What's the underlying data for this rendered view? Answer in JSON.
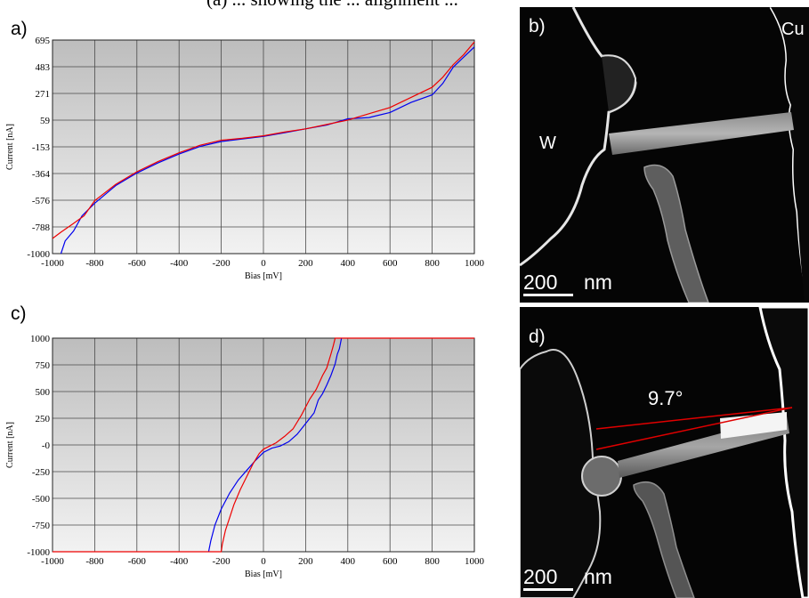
{
  "caption_fragment": "(a) ... showing the ... alignment ...",
  "panels": {
    "a": "a)",
    "b": "b)",
    "c": "c)",
    "d": "d)"
  },
  "tem_b": {
    "left_label": "W",
    "right_label": "Cu",
    "scale_value": "200",
    "scale_unit": "nm"
  },
  "tem_d": {
    "angle_label": "9.7°",
    "scale_value": "200",
    "scale_unit": "nm"
  },
  "colors": {
    "series_1": "#0000ee",
    "series_2": "#ee0000",
    "plot_bg_top": "#bdbdbd",
    "plot_bg_bottom": "#f2f2f2"
  },
  "chart_data": [
    {
      "type": "line",
      "xlabel": "Bias [mV]",
      "ylabel": "Current [nA]",
      "xlim": [
        -1000,
        1000
      ],
      "ylim": [
        -1000,
        695
      ],
      "xticks": [
        "-1000",
        "-800",
        "-600",
        "-400",
        "-200",
        "0",
        "200",
        "400",
        "600",
        "800",
        "1000"
      ],
      "yticks": [
        "695",
        "483",
        "271",
        "59",
        "-153",
        "-364",
        "-576",
        "-788",
        "-1000"
      ],
      "series": [
        {
          "color": "blue",
          "x": [
            -960,
            -940,
            -900,
            -860,
            -800,
            -700,
            -600,
            -500,
            -400,
            -300,
            -200,
            -100,
            0,
            100,
            200,
            300,
            400,
            500,
            600,
            700,
            800,
            850,
            900,
            950,
            1000
          ],
          "y": [
            -1000,
            -900,
            -820,
            -700,
            -600,
            -460,
            -360,
            -280,
            -210,
            -150,
            -110,
            -90,
            -70,
            -40,
            -10,
            20,
            70,
            80,
            120,
            200,
            260,
            350,
            480,
            560,
            640
          ]
        },
        {
          "color": "red",
          "x": [
            -1000,
            -960,
            -900,
            -850,
            -800,
            -700,
            -600,
            -500,
            -400,
            -300,
            -200,
            -100,
            0,
            100,
            200,
            300,
            400,
            500,
            600,
            700,
            800,
            850,
            900,
            950,
            1000
          ],
          "y": [
            -880,
            -830,
            -760,
            -700,
            -580,
            -450,
            -350,
            -270,
            -200,
            -140,
            -100,
            -85,
            -65,
            -35,
            -10,
            25,
            60,
            110,
            160,
            240,
            320,
            400,
            500,
            580,
            680
          ]
        }
      ]
    },
    {
      "type": "line",
      "xlabel": "Bias [mV]",
      "ylabel": "Current [nA]",
      "xlim": [
        -1000,
        1000
      ],
      "ylim": [
        -1000,
        1000
      ],
      "xticks": [
        "-1000",
        "-800",
        "-600",
        "-400",
        "-200",
        "0",
        "200",
        "400",
        "600",
        "800",
        "1000"
      ],
      "yticks": [
        "1000",
        "750",
        "500",
        "250",
        "-0",
        "-250",
        "-500",
        "-750",
        "-1000"
      ],
      "series": [
        {
          "color": "blue",
          "x": [
            -260,
            -250,
            -230,
            -200,
            -160,
            -120,
            -80,
            -40,
            0,
            40,
            80,
            120,
            160,
            200,
            240,
            260,
            280,
            300,
            320,
            340,
            350,
            360,
            370
          ],
          "y": [
            -1000,
            -900,
            -750,
            -600,
            -450,
            -330,
            -240,
            -150,
            -70,
            -30,
            -10,
            30,
            100,
            200,
            300,
            420,
            480,
            560,
            650,
            760,
            850,
            900,
            1000
          ]
        },
        {
          "color": "red",
          "x": [
            -1000,
            -200,
            -195,
            -180,
            -160,
            -140,
            -110,
            -80,
            -50,
            -20,
            0,
            30,
            60,
            100,
            140,
            180,
            220,
            250,
            280,
            300,
            320,
            330,
            340,
            350,
            1000
          ],
          "y": [
            -1000,
            -1000,
            -930,
            -800,
            -680,
            -560,
            -420,
            -300,
            -180,
            -80,
            -40,
            -10,
            20,
            80,
            150,
            280,
            430,
            520,
            650,
            720,
            850,
            920,
            1000,
            1000,
            1000
          ]
        }
      ]
    }
  ]
}
